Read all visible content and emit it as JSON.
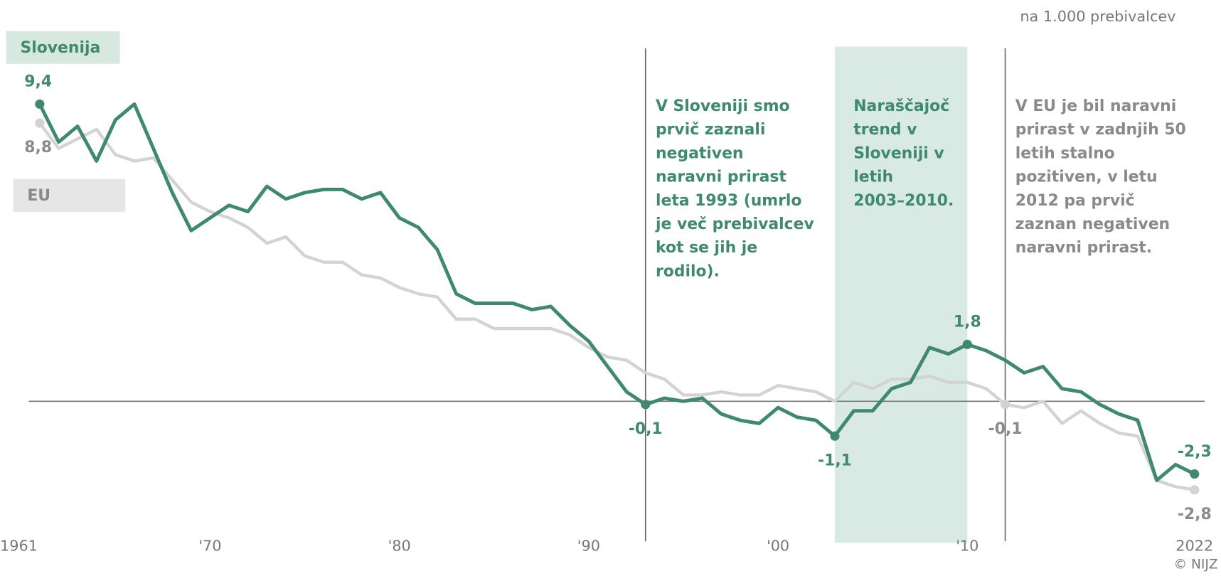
{
  "chart_data": {
    "type": "line",
    "unit_label": "na 1.000 prebivalcev",
    "source": "© NIJZ",
    "xlim": [
      1961,
      2022
    ],
    "ylim": [
      -4.4,
      10.5
    ],
    "yticks": [
      0
    ],
    "xticks": [
      1961,
      {
        "value": 1970,
        "label": "'70"
      },
      {
        "value": 1980,
        "label": "'80"
      },
      {
        "value": 1990,
        "label": "'90"
      },
      {
        "value": 2000,
        "label": "'00"
      },
      {
        "value": 2010,
        "label": "'10"
      },
      2022
    ],
    "x": [
      1961,
      1962,
      1963,
      1964,
      1965,
      1966,
      1967,
      1968,
      1969,
      1970,
      1971,
      1972,
      1973,
      1974,
      1975,
      1976,
      1977,
      1978,
      1979,
      1980,
      1981,
      1982,
      1983,
      1984,
      1985,
      1986,
      1987,
      1988,
      1989,
      1990,
      1991,
      1992,
      1993,
      1994,
      1995,
      1996,
      1997,
      1998,
      1999,
      2000,
      2001,
      2002,
      2003,
      2004,
      2005,
      2006,
      2007,
      2008,
      2009,
      2010,
      2011,
      2012,
      2013,
      2014,
      2015,
      2016,
      2017,
      2018,
      2019,
      2020,
      2021,
      2022
    ],
    "series": [
      {
        "name": "EU",
        "color": "#d3d3d3",
        "label_color": "#8a8a8a",
        "legend_color": "#e6e6e6",
        "values": [
          8.8,
          8.0,
          8.3,
          8.6,
          7.8,
          7.6,
          7.7,
          7.0,
          6.3,
          6.0,
          5.8,
          5.5,
          5.0,
          5.2,
          4.6,
          4.4,
          4.4,
          4.0,
          3.9,
          3.6,
          3.4,
          3.3,
          2.6,
          2.6,
          2.3,
          2.3,
          2.3,
          2.3,
          2.1,
          1.7,
          1.4,
          1.3,
          0.9,
          0.7,
          0.2,
          0.2,
          0.3,
          0.2,
          0.2,
          0.5,
          0.4,
          0.3,
          0.0,
          0.6,
          0.4,
          0.7,
          0.7,
          0.8,
          0.6,
          0.6,
          0.4,
          -0.1,
          -0.2,
          0.0,
          -0.7,
          -0.3,
          -0.7,
          -1.0,
          -1.1,
          -2.5,
          -2.7,
          -2.8
        ],
        "value_labels": [
          "8,8",
          null,
          null,
          null,
          null,
          null,
          null,
          null,
          null,
          null,
          null,
          null,
          null,
          null,
          null,
          null,
          null,
          null,
          null,
          null,
          null,
          null,
          null,
          null,
          null,
          null,
          null,
          null,
          null,
          null,
          null,
          null,
          null,
          null,
          null,
          null,
          null,
          null,
          null,
          null,
          null,
          null,
          null,
          null,
          null,
          null,
          null,
          null,
          null,
          null,
          null,
          "-0,1",
          null,
          null,
          null,
          null,
          null,
          null,
          null,
          null,
          null,
          "-2,8"
        ]
      },
      {
        "name": "Slovenija",
        "color": "#3f8a6e",
        "label_color": "#3f8a6e",
        "legend_color": "#d6e8e0",
        "values": [
          9.4,
          8.2,
          8.7,
          7.6,
          8.9,
          9.4,
          8.0,
          6.6,
          5.4,
          5.8,
          6.2,
          6.0,
          6.8,
          6.4,
          6.6,
          6.7,
          6.7,
          6.4,
          6.6,
          5.8,
          5.5,
          4.8,
          3.4,
          3.1,
          3.1,
          3.1,
          2.9,
          3.0,
          2.4,
          1.9,
          1.1,
          0.3,
          -0.1,
          0.1,
          0.0,
          0.1,
          -0.4,
          -0.6,
          -0.7,
          -0.2,
          -0.5,
          -0.6,
          -1.1,
          -0.3,
          -0.3,
          0.4,
          0.6,
          1.7,
          1.5,
          1.8,
          1.6,
          1.3,
          0.9,
          1.1,
          0.4,
          0.3,
          -0.1,
          -0.4,
          -0.6,
          -2.5,
          -2.0,
          -2.3
        ],
        "value_labels": [
          "9,4",
          null,
          null,
          null,
          null,
          null,
          null,
          null,
          null,
          null,
          null,
          null,
          null,
          null,
          null,
          null,
          null,
          null,
          null,
          null,
          null,
          null,
          null,
          null,
          null,
          null,
          null,
          null,
          null,
          null,
          null,
          null,
          "-0,1",
          null,
          null,
          null,
          null,
          null,
          null,
          null,
          null,
          null,
          "-1,1",
          null,
          null,
          null,
          null,
          null,
          null,
          "1,8",
          null,
          null,
          null,
          null,
          null,
          null,
          null,
          null,
          null,
          null,
          null,
          "-2,3"
        ]
      }
    ],
    "annotations": [
      {
        "x": 1993,
        "color": "#3f8a6e",
        "lines": [
          "V Sloveniji smo",
          "prvič zaznali",
          "negativen",
          "naravni prirast",
          "leta 1993 (umrlo",
          "je več prebivalcev",
          "kot se jih je",
          "rodilo)."
        ]
      },
      {
        "x": [
          2003,
          2010
        ],
        "color": "#3f8a6e",
        "lines": [
          "Naraščajoč",
          "trend v",
          "Sloveniji v",
          "letih",
          "2003–2010."
        ]
      },
      {
        "x": 2012,
        "color": "#8a8a8a",
        "lines": [
          "V EU je bil naravni",
          "prirast v zadnjih 50",
          "letih stalno",
          "pozitiven, v letu",
          "2012 pa prvič",
          "zaznan negativen",
          "naravni prirast."
        ]
      }
    ]
  }
}
